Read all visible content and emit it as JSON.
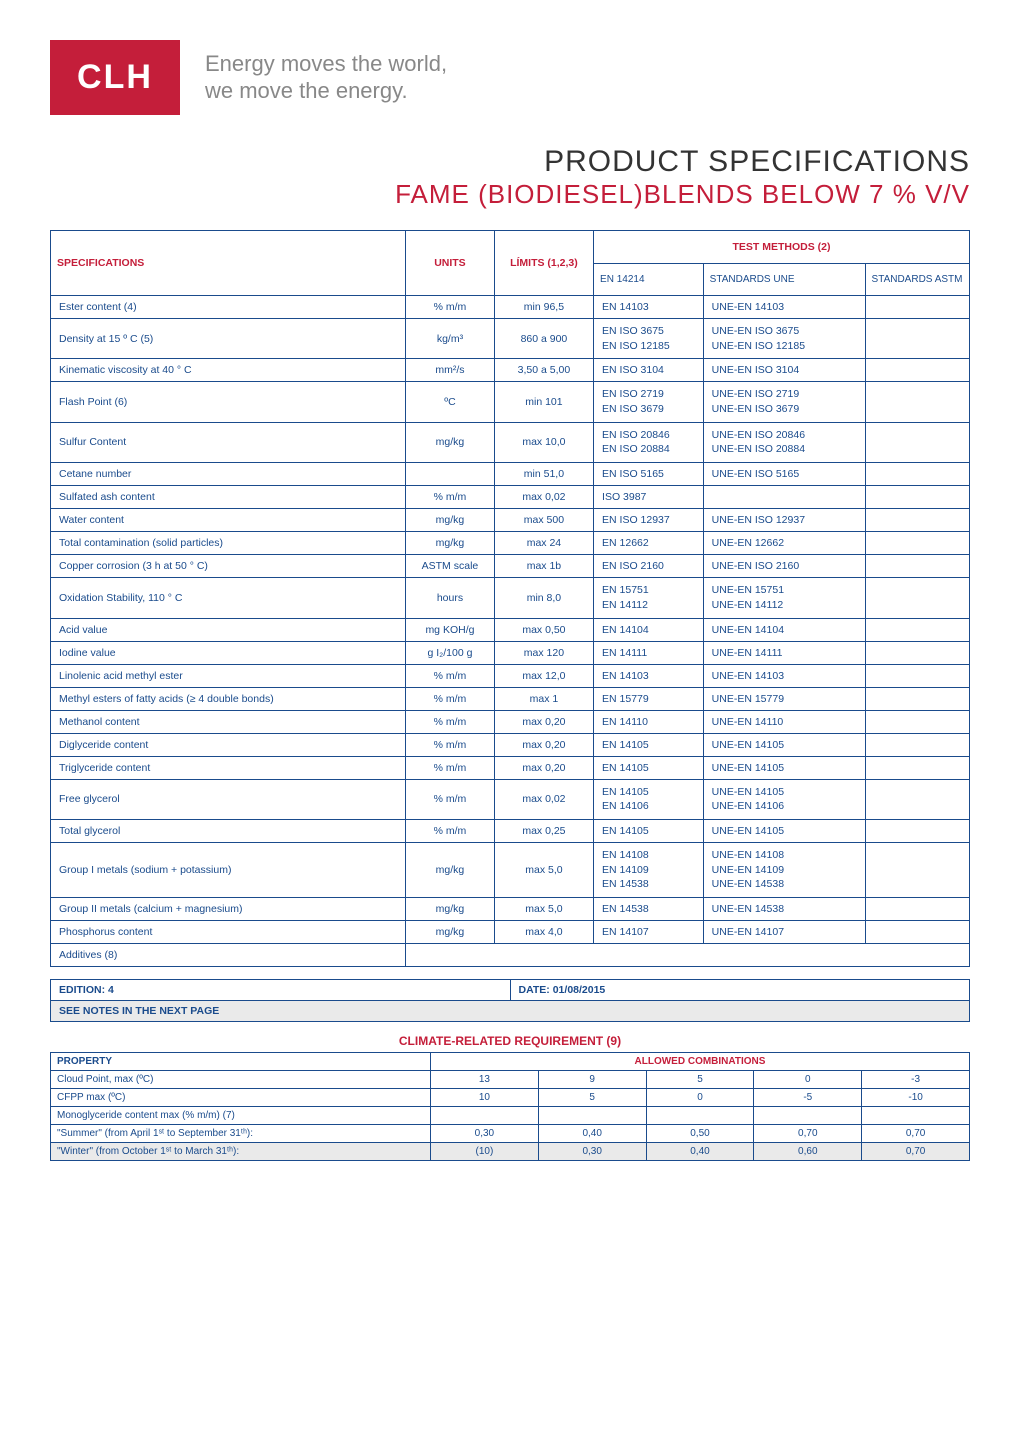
{
  "header": {
    "logo_text": "CLH",
    "tagline_l1": "Energy moves the world,",
    "tagline_l2": "we move the energy."
  },
  "title": {
    "line1": "PRODUCT SPECIFICATIONS",
    "line2": "FAME (BIODIESEL)BLENDS BELOW 7 % V/V"
  },
  "spec_table": {
    "head": {
      "specifications": "SPECIFICATIONS",
      "units": "UNITS",
      "limits": "LÍMITS (1,2,3)",
      "methods": "TEST METHODS (2)",
      "m1": "EN 14214",
      "m2": "STANDARDS UNE",
      "m3": "STANDARDS ASTM"
    },
    "rows": [
      {
        "spec": "Ester content (4)",
        "unit": "% m/m",
        "lim": "min 96,5",
        "m1": "EN 14103",
        "m2": "UNE-EN 14103",
        "m3": ""
      },
      {
        "spec": "Density at 15 º C (5)",
        "unit": "kg/m³",
        "lim": "860 a 900",
        "m1": "EN ISO 3675\nEN ISO 12185",
        "m2": "UNE-EN ISO 3675\nUNE-EN ISO 12185",
        "m3": ""
      },
      {
        "spec": "Kinematic viscosity at 40 ° C",
        "unit": "mm²/s",
        "lim": "3,50 a 5,00",
        "m1": "EN ISO 3104",
        "m2": "UNE-EN ISO 3104",
        "m3": ""
      },
      {
        "spec": "Flash Point (6)",
        "unit": "ºC",
        "lim": "min 101",
        "m1": "EN ISO 2719\nEN ISO 3679",
        "m2": "UNE-EN ISO 2719\nUNE-EN ISO 3679",
        "m3": ""
      },
      {
        "spec": "Sulfur Content",
        "unit": "mg/kg",
        "lim": "max 10,0",
        "m1": "EN ISO 20846\nEN ISO 20884",
        "m2": "UNE-EN ISO 20846\nUNE-EN ISO 20884",
        "m3": ""
      },
      {
        "spec": "Cetane number",
        "unit": "",
        "lim": "min 51,0",
        "m1": "EN ISO 5165",
        "m2": "UNE-EN ISO 5165",
        "m3": ""
      },
      {
        "spec": "Sulfated ash content",
        "unit": "% m/m",
        "lim": "max 0,02",
        "m1": "ISO 3987",
        "m2": "",
        "m3": ""
      },
      {
        "spec": "Water content",
        "unit": "mg/kg",
        "lim": "max 500",
        "m1": "EN ISO 12937",
        "m2": "UNE-EN ISO 12937",
        "m3": ""
      },
      {
        "spec": "Total contamination (solid particles)",
        "unit": "mg/kg",
        "lim": "max 24",
        "m1": "EN 12662",
        "m2": "UNE-EN 12662",
        "m3": ""
      },
      {
        "spec": "Copper corrosion (3 h at 50 ° C)",
        "unit": "ASTM scale",
        "lim": "max 1b",
        "m1": "EN ISO 2160",
        "m2": "UNE-EN ISO 2160",
        "m3": ""
      },
      {
        "spec": "Oxidation Stability, 110 ° C",
        "unit": "hours",
        "lim": "min 8,0",
        "m1": "EN 15751\nEN 14112",
        "m2": "UNE-EN 15751\nUNE-EN 14112",
        "m3": ""
      },
      {
        "spec": "Acid value",
        "unit": "mg KOH/g",
        "lim": "max 0,50",
        "m1": "EN 14104",
        "m2": "UNE-EN 14104",
        "m3": ""
      },
      {
        "spec": "Iodine value",
        "unit": "g I₂/100 g",
        "lim": "max 120",
        "m1": "EN 14111",
        "m2": "UNE-EN 14111",
        "m3": ""
      },
      {
        "spec": "Linolenic acid methyl ester",
        "unit": "% m/m",
        "lim": "max 12,0",
        "m1": "EN 14103",
        "m2": "UNE-EN 14103",
        "m3": ""
      },
      {
        "spec": "Methyl esters of fatty acids (≥ 4 double bonds)",
        "unit": "% m/m",
        "lim": "max 1",
        "m1": "EN 15779",
        "m2": "UNE-EN 15779",
        "m3": ""
      },
      {
        "spec": "Methanol content",
        "unit": "% m/m",
        "lim": "max 0,20",
        "m1": "EN 14110",
        "m2": "UNE-EN 14110",
        "m3": ""
      },
      {
        "spec": "Diglyceride content",
        "unit": "% m/m",
        "lim": "max 0,20",
        "m1": "EN 14105",
        "m2": "UNE-EN 14105",
        "m3": ""
      },
      {
        "spec": "Triglyceride content",
        "unit": "% m/m",
        "lim": "max 0,20",
        "m1": "EN 14105",
        "m2": "UNE-EN 14105",
        "m3": ""
      },
      {
        "spec": "Free glycerol",
        "unit": "% m/m",
        "lim": "max 0,02",
        "m1": "EN 14105\nEN 14106",
        "m2": "UNE-EN 14105\nUNE-EN 14106",
        "m3": ""
      },
      {
        "spec": "Total glycerol",
        "unit": "% m/m",
        "lim": "max 0,25",
        "m1": "EN 14105",
        "m2": "UNE-EN 14105",
        "m3": ""
      },
      {
        "spec": "Group I metals (sodium + potassium)",
        "unit": "mg/kg",
        "lim": "max  5,0",
        "m1": "EN 14108\nEN 14109\nEN 14538",
        "m2": "UNE-EN 14108\nUNE-EN 14109\nUNE-EN 14538",
        "m3": ""
      },
      {
        "spec": "Group II metals (calcium + magnesium)",
        "unit": "mg/kg",
        "lim": "max 5,0",
        "m1": "EN 14538",
        "m2": "UNE-EN 14538",
        "m3": ""
      },
      {
        "spec": "Phosphorus content",
        "unit": "mg/kg",
        "lim": "max 4,0",
        "m1": "EN 14107",
        "m2": "UNE-EN 14107",
        "m3": ""
      },
      {
        "spec": "Additives (8)",
        "unit": "",
        "lim": "",
        "m1": "",
        "m2": "",
        "m3": "",
        "span": true
      }
    ]
  },
  "edition_box": {
    "edition": "EDITION: 4",
    "date": "DATE: 01/08/2015",
    "notes": "SEE NOTES IN THE NEXT PAGE"
  },
  "climate": {
    "title": "CLIMATE-RELATED REQUIREMENT (9)",
    "head_prop": "PROPERTY",
    "head_comb": "ALLOWED COMBINATIONS",
    "rows": [
      {
        "prop": "Cloud Point, max (ºC)",
        "v": [
          "13",
          "9",
          "5",
          "0",
          "-3"
        ]
      },
      {
        "prop": "CFPP max (ºC)",
        "v": [
          "10",
          "5",
          "0",
          "-5",
          "-10"
        ]
      },
      {
        "prop": "Monoglyceride content max (% m/m) (7)",
        "v": [
          "",
          "",
          "",
          "",
          ""
        ]
      },
      {
        "prop": "\"Summer\" (from April 1ˢᵗ to September 31ᵗʰ):",
        "v": [
          "0,30",
          "0,40",
          "0,50",
          "0,70",
          "0,70"
        ]
      },
      {
        "prop": "\"Winter\" (from October 1ˢᵗ to March 31ᵗʰ):",
        "v": [
          "(10)",
          "0,30",
          "0,40",
          "0,60",
          "0,70"
        ],
        "grey": true
      }
    ]
  }
}
